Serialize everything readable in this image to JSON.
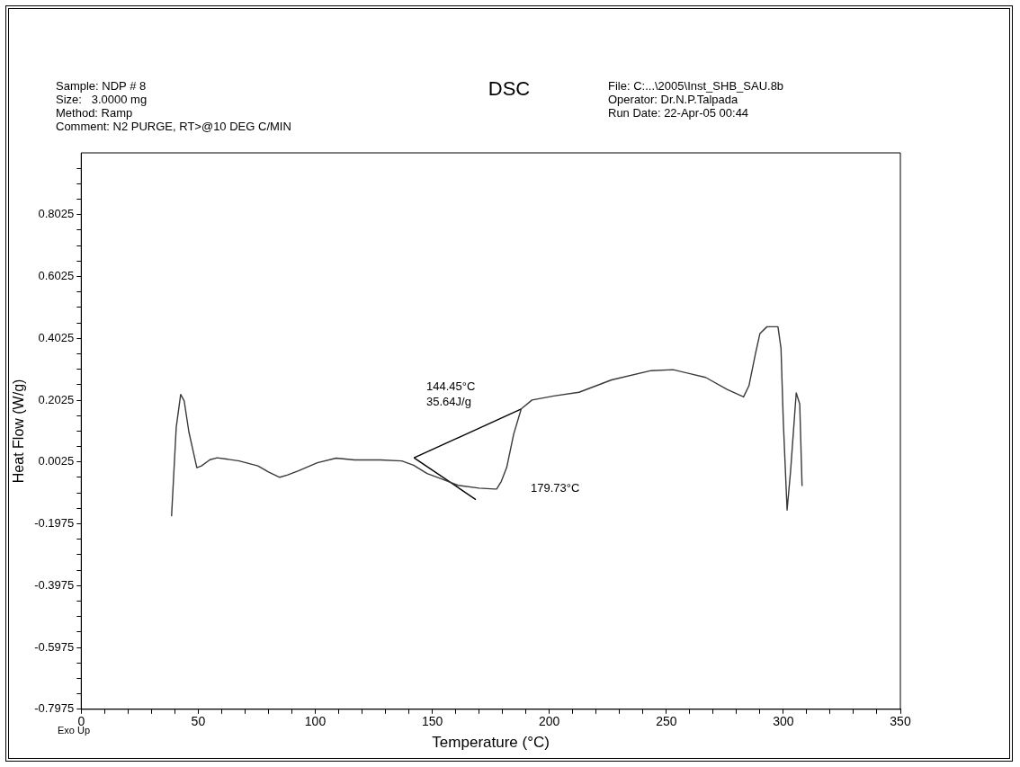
{
  "chart_data": {
    "type": "line",
    "title": "DSC",
    "xlabel": "Temperature (°C)",
    "ylabel": "Heat Flow (W/g)",
    "xlim": [
      0,
      350
    ],
    "xticks": [
      0,
      {
        "value": 10,
        "label": null
      },
      {
        "value": 20,
        "label": null
      },
      {
        "value": 30,
        "label": null
      },
      {
        "value": 40,
        "label": null
      },
      50,
      {
        "value": 60,
        "label": null
      },
      {
        "value": 70,
        "label": null
      },
      {
        "value": 80,
        "label": null
      },
      {
        "value": 90,
        "label": null
      },
      100,
      {
        "value": 110,
        "label": null
      },
      {
        "value": 120,
        "label": null
      },
      {
        "value": 130,
        "label": null
      },
      {
        "value": 140,
        "label": null
      },
      150,
      {
        "value": 160,
        "label": null
      },
      {
        "value": 170,
        "label": null
      },
      {
        "value": 180,
        "label": null
      },
      {
        "value": 190,
        "label": null
      },
      200,
      {
        "value": 210,
        "label": null
      },
      {
        "value": 220,
        "label": null
      },
      {
        "value": 230,
        "label": null
      },
      {
        "value": 240,
        "label": null
      },
      250,
      {
        "value": 260,
        "label": null
      },
      {
        "value": 270,
        "label": null
      },
      {
        "value": 280,
        "label": null
      },
      {
        "value": 290,
        "label": null
      },
      300,
      {
        "value": 310,
        "label": null
      },
      {
        "value": 320,
        "label": null
      },
      {
        "value": 330,
        "label": null
      },
      {
        "value": 340,
        "label": null
      },
      350
    ],
    "ylim": [
      -0.7975,
      1.0025
    ],
    "yticks": [
      -0.7975,
      {
        "value": -0.7475,
        "label": null
      },
      {
        "value": -0.6975,
        "label": null
      },
      {
        "value": -0.6475,
        "label": null
      },
      -0.5975,
      {
        "value": -0.5475,
        "label": null
      },
      {
        "value": -0.4975,
        "label": null
      },
      {
        "value": -0.4475,
        "label": null
      },
      -0.3975,
      {
        "value": -0.3475,
        "label": null
      },
      {
        "value": -0.2975,
        "label": null
      },
      {
        "value": -0.2475,
        "label": null
      },
      -0.1975,
      {
        "value": -0.1475,
        "label": null
      },
      {
        "value": -0.0975,
        "label": null
      },
      {
        "value": -0.0475,
        "label": null
      },
      0.0025,
      {
        "value": 0.0525,
        "label": null
      },
      {
        "value": 0.1025,
        "label": null
      },
      {
        "value": 0.1525,
        "label": null
      },
      0.2025,
      {
        "value": 0.2525,
        "label": null
      },
      {
        "value": 0.3025,
        "label": null
      },
      {
        "value": 0.3525,
        "label": null
      },
      0.4025,
      {
        "value": 0.4525,
        "label": null
      },
      {
        "value": 0.5025,
        "label": null
      },
      {
        "value": 0.5525,
        "label": null
      },
      0.6025,
      {
        "value": 0.6525,
        "label": null
      },
      {
        "value": 0.7025,
        "label": null
      },
      {
        "value": 0.7525,
        "label": null
      },
      0.8025,
      {
        "value": 0.8525,
        "label": null
      },
      {
        "value": 0.9025,
        "label": null
      },
      {
        "value": 0.9525,
        "label": null
      }
    ],
    "grid": false,
    "legend": false,
    "marker": "none",
    "line_style": "solid",
    "series": [
      {
        "color": "#3a3a3a",
        "x": [
          38.6,
          40.6,
          42.5,
          44,
          46,
          49.4,
          51.4,
          55,
          58.1,
          62,
          67.5,
          75.5,
          80,
          84.8,
          88,
          92.8,
          100.9,
          108.9,
          116.9,
          127.8,
          137,
          142,
          147.8,
          155,
          161,
          170,
          176.6,
          177.5,
          179.5,
          181.8,
          184.8,
          188,
          192.6,
          201.9,
          212.7,
          226.6,
          243.5,
          252.9,
          266.8,
          276,
          283,
          285.3,
          288,
          290,
          293,
          297.7,
          299,
          300,
          301.6,
          303.1,
          305.5,
          307,
          308
        ],
        "values": [
          -0.173,
          0.115,
          0.221,
          0.2,
          0.1,
          -0.016,
          -0.01,
          0.01,
          0.016,
          0.012,
          0.006,
          -0.01,
          -0.03,
          -0.047,
          -0.04,
          -0.026,
          0,
          0.015,
          0.009,
          0.009,
          0.006,
          -0.008,
          -0.035,
          -0.055,
          -0.073,
          -0.082,
          -0.085,
          -0.085,
          -0.06,
          -0.015,
          0.093,
          0.174,
          0.203,
          0.216,
          0.228,
          0.268,
          0.298,
          0.301,
          0.276,
          0.237,
          0.213,
          0.249,
          0.35,
          0.418,
          0.44,
          0.44,
          0.37,
          0.13,
          -0.153,
          -0.026,
          0.226,
          0.19,
          -0.075
        ]
      },
      {
        "color": "#000000",
        "x": [
          142.2,
          188
        ],
        "values": [
          0.016,
          0.174
        ]
      },
      {
        "color": "#000000",
        "x": [
          142.2,
          168.6
        ],
        "values": [
          0.016,
          -0.119
        ]
      }
    ],
    "annotations": [
      "Sample: NDP # 8",
      "Size:   3.0000 mg",
      "Method: Ramp",
      "Comment: N2 PURGE, RT>@10 DEG C/MIN",
      "File: C:...\\2005\\Inst_SHB_SAU.8b",
      "Operator: Dr.N.P.Talpada",
      "Run Date: 22-Apr-05 00:44",
      "Exo Up",
      "144.45°C",
      "35.64J/g",
      "179.73°C"
    ]
  }
}
